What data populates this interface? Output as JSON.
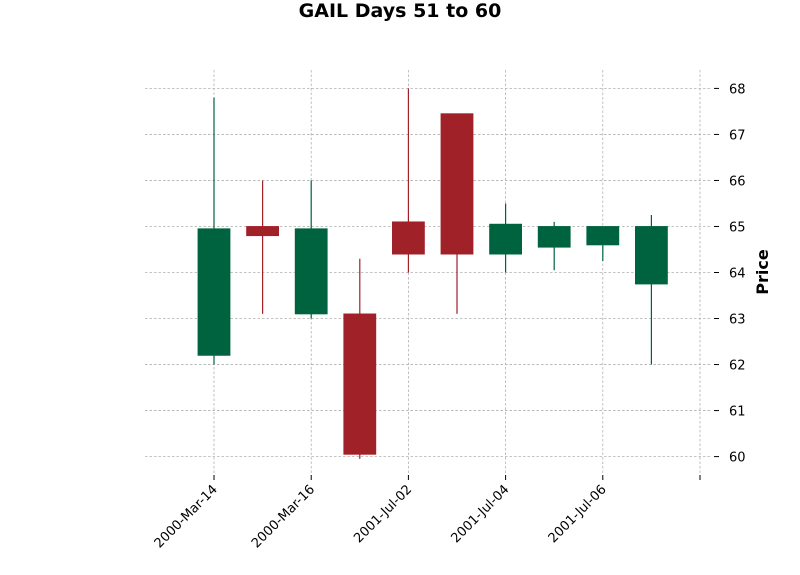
{
  "chart_data": {
    "type": "candlestick",
    "title": "GAIL Days 51 to 60",
    "xlabel": "",
    "ylabel": "Price",
    "ylim": [
      59.6,
      68.4
    ],
    "yticks": [
      60,
      61,
      62,
      63,
      64,
      65,
      66,
      67,
      68
    ],
    "x_tick_labels": [
      "2000-Mar-14",
      "2000-Mar-16",
      "2001-Jul-02",
      "2001-Jul-04",
      "2001-Jul-06",
      ""
    ],
    "grid": true,
    "colors": {
      "up": "#006340",
      "down": "#a02128",
      "grid": "#b0b0b0"
    },
    "candles": [
      {
        "date": "2000-Mar-14",
        "open": 62.2,
        "high": 67.8,
        "low": 62.0,
        "close": 64.95
      },
      {
        "date": "2000-Mar-15",
        "open": 65.0,
        "high": 66.0,
        "low": 63.1,
        "close": 64.8
      },
      {
        "date": "2000-Mar-16",
        "open": 63.1,
        "high": 66.0,
        "low": 63.0,
        "close": 64.95
      },
      {
        "date": "2000-Mar-17",
        "open": 63.1,
        "high": 64.3,
        "low": 59.95,
        "close": 60.05
      },
      {
        "date": "2001-Jul-02",
        "open": 65.1,
        "high": 68.0,
        "low": 64.0,
        "close": 64.4
      },
      {
        "date": "2001-Jul-03",
        "open": 67.45,
        "high": 67.45,
        "low": 63.1,
        "close": 64.4
      },
      {
        "date": "2001-Jul-04",
        "open": 64.4,
        "high": 65.5,
        "low": 64.0,
        "close": 65.05
      },
      {
        "date": "2001-Jul-05",
        "open": 64.55,
        "high": 65.1,
        "low": 64.05,
        "close": 65.0
      },
      {
        "date": "2001-Jul-06",
        "open": 64.6,
        "high": 65.0,
        "low": 64.25,
        "close": 65.0
      },
      {
        "date": "2001-Jul-07",
        "open": 63.75,
        "high": 65.25,
        "low": 62.0,
        "close": 65.0
      }
    ]
  }
}
